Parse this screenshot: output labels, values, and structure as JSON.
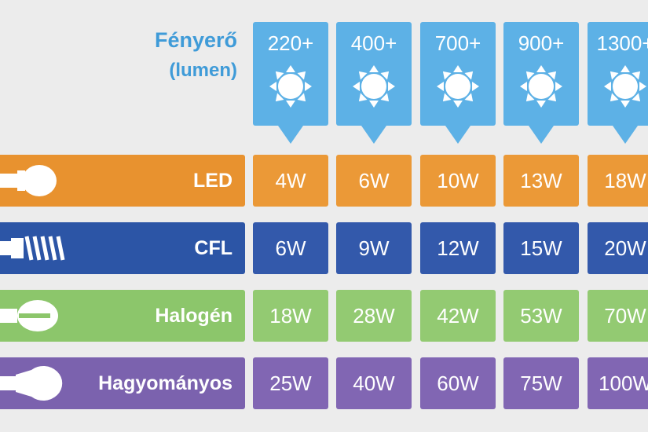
{
  "header": {
    "title": "Fényerő",
    "unit": "(lumen)",
    "columns": [
      "220+",
      "400+",
      "700+",
      "900+",
      "1300+"
    ]
  },
  "rows": [
    {
      "label": "LED",
      "cells": [
        "4W",
        "6W",
        "10W",
        "13W",
        "18W"
      ]
    },
    {
      "label": "CFL",
      "cells": [
        "6W",
        "9W",
        "12W",
        "15W",
        "20W"
      ]
    },
    {
      "label": "Halogén",
      "cells": [
        "18W",
        "28W",
        "42W",
        "53W",
        "70W"
      ]
    },
    {
      "label": "Hagyományos",
      "cells": [
        "25W",
        "40W",
        "60W",
        "75W",
        "100W"
      ]
    }
  ]
}
